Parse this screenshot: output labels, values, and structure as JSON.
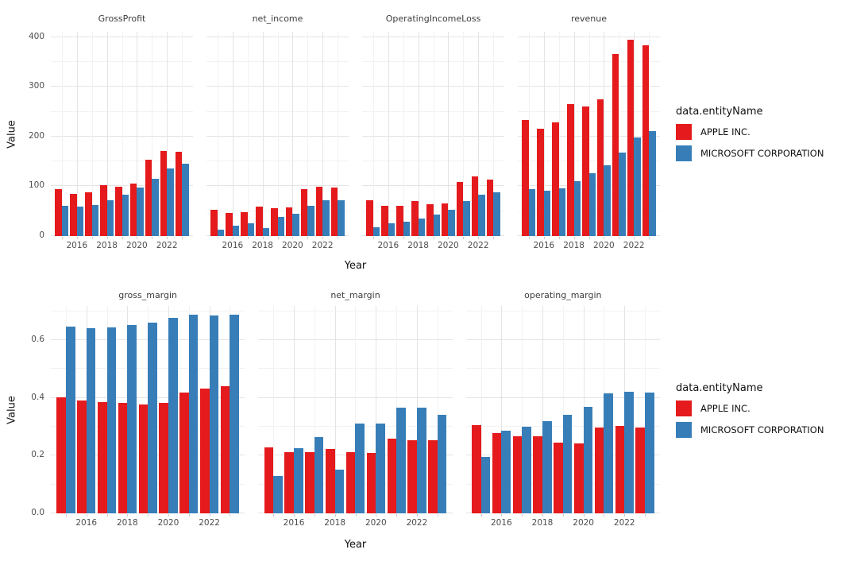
{
  "figure": {
    "legend_title": "data.entityName",
    "legend": [
      {
        "label": "APPLE INC.",
        "color": "#E41A1C"
      },
      {
        "label": "MICROSOFT CORPORATION",
        "color": "#377EB8"
      }
    ],
    "colors": {
      "apple": "#E41A1C",
      "microsoft": "#377EB8",
      "grid_major": "#e4e4e4",
      "grid_minor": "#f2f2f2"
    }
  },
  "chart_data": [
    {
      "type": "bar",
      "row": "top",
      "xlabel": "Year",
      "ylabel": "Value",
      "x": [
        2015,
        2016,
        2017,
        2018,
        2019,
        2020,
        2021,
        2022,
        2023
      ],
      "xticks": [
        2016,
        2018,
        2020,
        2022
      ],
      "yticks": [
        "0",
        "100",
        "200",
        "300",
        "400"
      ],
      "ytick_values": [
        0,
        100,
        200,
        300,
        400
      ],
      "ylim": [
        0,
        411
      ],
      "grid": true,
      "legend_position": "right",
      "series_names": [
        "APPLE INC.",
        "MICROSOFT CORPORATION"
      ],
      "facets": [
        {
          "title": "GrossProfit",
          "series": [
            {
              "name": "APPLE INC.",
              "values": [
                93.6,
                84.3,
                88.2,
                101.8,
                98.4,
                105.0,
                152.8,
                170.8,
                169.1
              ]
            },
            {
              "name": "MICROSOFT CORPORATION",
              "values": [
                60.5,
                58.4,
                62.3,
                72.0,
                82.9,
                96.9,
                115.9,
                135.6,
                146.1
              ]
            }
          ]
        },
        {
          "title": "net_income",
          "series": [
            {
              "name": "APPLE INC.",
              "values": [
                53.4,
                45.7,
                48.4,
                59.5,
                55.3,
                57.4,
                94.7,
                99.8,
                97.0
              ]
            },
            {
              "name": "MICROSOFT CORPORATION",
              "values": [
                12.2,
                20.5,
                25.5,
                16.6,
                39.2,
                44.3,
                61.3,
                72.7,
                72.4
              ]
            }
          ]
        },
        {
          "title": "OperatingIncomeLoss",
          "series": [
            {
              "name": "APPLE INC.",
              "values": [
                71.2,
                60.0,
                61.3,
                70.9,
                63.9,
                66.3,
                108.9,
                119.4,
                114.3
              ]
            },
            {
              "name": "MICROSOFT CORPORATION",
              "values": [
                18.2,
                26.1,
                29.0,
                35.1,
                43.0,
                53.0,
                69.9,
                83.4,
                88.5
              ]
            }
          ]
        },
        {
          "title": "revenue",
          "series": [
            {
              "name": "APPLE INC.",
              "values": [
                233.7,
                215.6,
                229.2,
                265.6,
                260.2,
                274.5,
                365.8,
                394.3,
                383.3
              ]
            },
            {
              "name": "MICROSOFT CORPORATION",
              "values": [
                93.6,
                91.2,
                96.6,
                110.4,
                125.8,
                143.0,
                168.1,
                198.3,
                211.9
              ]
            }
          ]
        }
      ]
    },
    {
      "type": "bar",
      "row": "bottom",
      "xlabel": "Year",
      "ylabel": "Value",
      "x": [
        2015,
        2016,
        2017,
        2018,
        2019,
        2020,
        2021,
        2022,
        2023
      ],
      "xticks": [
        2016,
        2018,
        2020,
        2022
      ],
      "yticks": [
        "0.0",
        "0.2",
        "0.4",
        "0.6"
      ],
      "ytick_values": [
        0,
        0.2,
        0.4,
        0.6
      ],
      "ylim": [
        0,
        0.718
      ],
      "grid": true,
      "legend_position": "right",
      "series_names": [
        "APPLE INC.",
        "MICROSOFT CORPORATION"
      ],
      "facets": [
        {
          "title": "gross_margin",
          "series": [
            {
              "name": "APPLE INC.",
              "values": [
                0.401,
                0.391,
                0.385,
                0.383,
                0.378,
                0.382,
                0.418,
                0.433,
                0.441
              ]
            },
            {
              "name": "MICROSOFT CORPORATION",
              "values": [
                0.647,
                0.64,
                0.645,
                0.652,
                0.659,
                0.678,
                0.689,
                0.684,
                0.689
              ]
            }
          ]
        },
        {
          "title": "net_margin",
          "series": [
            {
              "name": "APPLE INC.",
              "values": [
                0.228,
                0.212,
                0.211,
                0.224,
                0.212,
                0.209,
                0.259,
                0.253,
                0.253
              ]
            },
            {
              "name": "MICROSOFT CORPORATION",
              "values": [
                0.13,
                0.225,
                0.264,
                0.15,
                0.312,
                0.31,
                0.365,
                0.367,
                0.341
              ]
            }
          ]
        },
        {
          "title": "operating_margin",
          "series": [
            {
              "name": "APPLE INC.",
              "values": [
                0.305,
                0.278,
                0.268,
                0.267,
                0.246,
                0.241,
                0.298,
                0.303,
                0.298
              ]
            },
            {
              "name": "MICROSOFT CORPORATION",
              "values": [
                0.194,
                0.286,
                0.301,
                0.318,
                0.341,
                0.37,
                0.416,
                0.421,
                0.418
              ]
            }
          ]
        }
      ]
    }
  ]
}
